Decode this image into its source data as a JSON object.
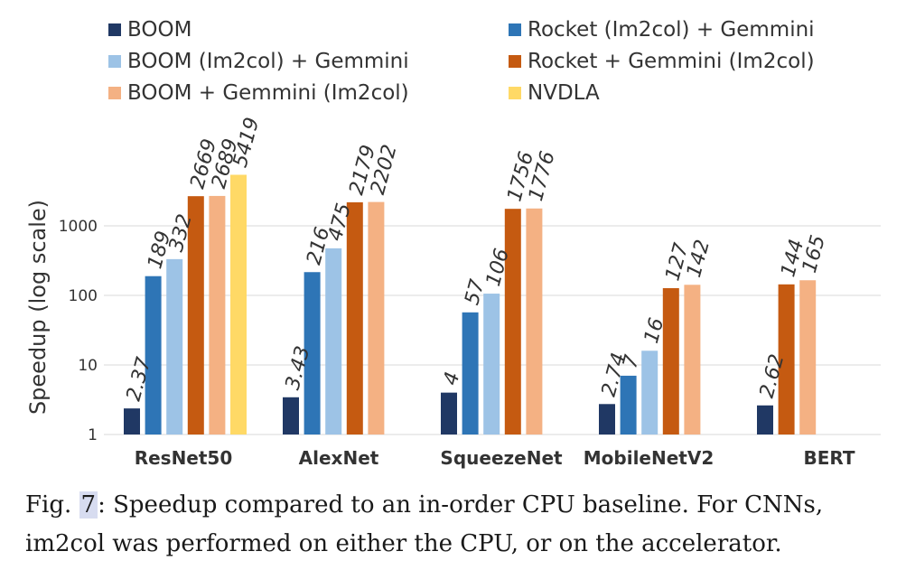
{
  "chart_data": {
    "type": "bar",
    "ylabel": "Speedup (log scale)",
    "yscale": "log",
    "ylim": [
      1,
      5419
    ],
    "yticks": [
      "1",
      "10",
      "100",
      "1000"
    ],
    "grid": true,
    "legend_position": "top",
    "categories": [
      "ResNet50",
      "AlexNet",
      "SqueezeNet",
      "MobileNetV2",
      "BERT"
    ],
    "series": [
      {
        "name": "BOOM",
        "color": "#203864",
        "values": [
          2.37,
          3.43,
          4,
          2.74,
          2.62
        ],
        "labels": [
          "2.37",
          "3.43",
          "4",
          "2.74",
          "2.62"
        ]
      },
      {
        "name": "Rocket (Im2col) + Gemmini",
        "color": "#2e75b6",
        "values": [
          189,
          216,
          57,
          7,
          null
        ],
        "labels": [
          "189",
          "216",
          "57",
          "7",
          ""
        ]
      },
      {
        "name": "BOOM (Im2col) + Gemmini",
        "color": "#9dc3e6",
        "values": [
          332,
          475,
          106,
          16,
          null
        ],
        "labels": [
          "332",
          "475",
          "106",
          "16",
          ""
        ]
      },
      {
        "name": "Rocket + Gemmini (Im2col)",
        "color": "#c55a11",
        "values": [
          2669,
          2179,
          1756,
          127,
          144
        ],
        "labels": [
          "2669",
          "2179",
          "1756",
          "127",
          "144"
        ]
      },
      {
        "name": "BOOM + Gemmini (Im2col)",
        "color": "#f4b183",
        "values": [
          2689,
          2202,
          1776,
          142,
          165
        ],
        "labels": [
          "2689",
          "2202",
          "1776",
          "142",
          "165"
        ]
      },
      {
        "name": "NVDLA",
        "color": "#ffd966",
        "values": [
          5419,
          null,
          null,
          null,
          null
        ],
        "labels": [
          "5419",
          "",
          "",
          "",
          ""
        ]
      }
    ]
  },
  "caption": {
    "prefix": "Fig.",
    "number": "7",
    "line1": ": Speedup compared to an in-order CPU baseline. For CNNs,",
    "line2": "im2col was performed on either the CPU, or on the accelerator."
  }
}
